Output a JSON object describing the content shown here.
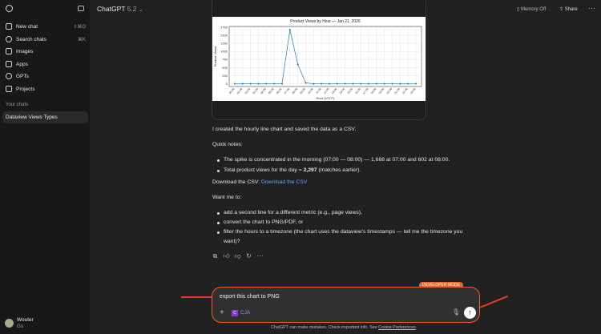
{
  "sidebar": {
    "items": [
      {
        "label": "New chat",
        "shortcut": "⇧⌘O"
      },
      {
        "label": "Search chats",
        "shortcut": "⌘K"
      },
      {
        "label": "Images"
      },
      {
        "label": "Apps"
      },
      {
        "label": "GPTs"
      },
      {
        "label": "Projects"
      }
    ],
    "section": "Your chats",
    "chats": [
      "Dataview Views Types"
    ],
    "user": {
      "name": "Wouter",
      "plan": "Go"
    }
  },
  "header": {
    "model": "ChatGPT",
    "version": "5.2",
    "memory": "Memory Off",
    "share": "Share"
  },
  "message": {
    "intro": "I created the hourly line chart and saved the data as a CSV.",
    "notes_title": "Quick notes:",
    "notes": [
      {
        "pre": "The spike is concentrated in the morning (07:00 — 08:00) — 1,668 at 07:00 and 602 at 08:00."
      },
      {
        "pre": "Total product views for the day = ",
        "bold": "2,297",
        "post": " (matches earlier)."
      }
    ],
    "download_pre": "Download the CSV: ",
    "download_link": "Download the CSV",
    "want": "Want me to:",
    "options": [
      "add a second line for a different metric (e.g., page views),",
      "convert the chart to PNG/PDF, or",
      "filter the hours to a timezone (the chart uses the dataview's timestamps — tell me the timezone you want)?"
    ]
  },
  "composer": {
    "badge": "DEVELOPER MODE",
    "text": "export this chart to PNG",
    "tool": "CJA",
    "tool_initial": "C",
    "disclaimer": "ChatGPT can make mistakes. Check important info. See ",
    "cookie": "Cookie Preferences",
    "accent": "#e8622a"
  },
  "chart_data": {
    "type": "line",
    "title": "Product Views by Hour — Jan 21, 2026",
    "xlabel": "Hour (UTC?)",
    "ylabel": "Product Views",
    "categories": [
      "00:00",
      "01:00",
      "02:00",
      "03:00",
      "04:00",
      "05:00",
      "06:00",
      "07:00",
      "08:00",
      "09:00",
      "10:00",
      "11:00",
      "12:00",
      "13:00",
      "14:00",
      "15:00",
      "16:00",
      "17:00",
      "18:00",
      "19:00",
      "20:00",
      "21:00",
      "22:00",
      "23:00"
    ],
    "values": [
      0,
      0,
      0,
      0,
      0,
      0,
      0,
      1668,
      602,
      27,
      0,
      0,
      0,
      0,
      0,
      0,
      0,
      0,
      0,
      0,
      0,
      0,
      0,
      0
    ],
    "yticks": [
      0,
      250,
      500,
      750,
      1000,
      1250,
      1500,
      1750
    ],
    "ylim": [
      -85,
      1770
    ],
    "grid": true,
    "color": "#1f77b4"
  }
}
